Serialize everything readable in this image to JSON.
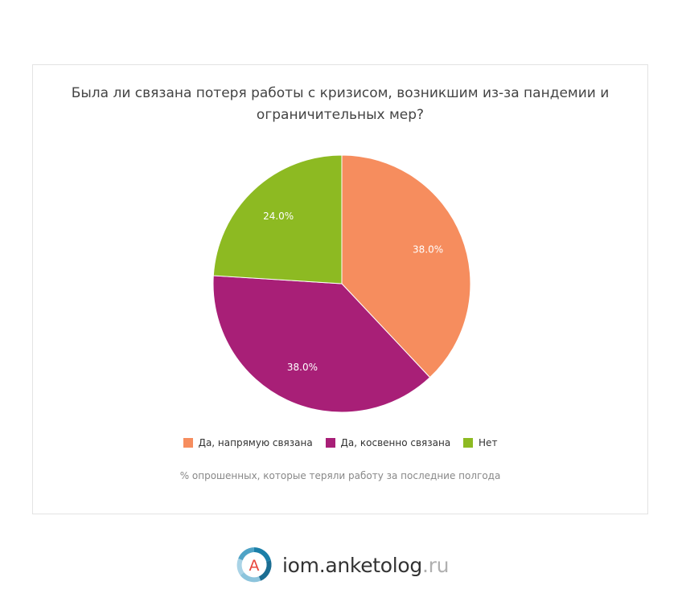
{
  "chart_data": {
    "type": "pie",
    "title": "Была ли связана потеря работы с кризисом, возникшим из-за пандемии и ограничительных мер?",
    "subtitle": "% опрошенных, которые теряли работу за последние полгода",
    "slices": [
      {
        "label": "Да, напрямую связана",
        "value": 38.0,
        "display": "38.0%",
        "color": "#f68d5e"
      },
      {
        "label": "Да, косвенно связана",
        "value": 38.0,
        "display": "38.0%",
        "color": "#a81f77"
      },
      {
        "label": "Нет",
        "value": 24.0,
        "display": "24.0%",
        "color": "#8dba22"
      }
    ],
    "legend_position": "bottom"
  },
  "brand": {
    "logo_letter": "A",
    "name": "iom.anketolog",
    "tld": ".ru"
  }
}
